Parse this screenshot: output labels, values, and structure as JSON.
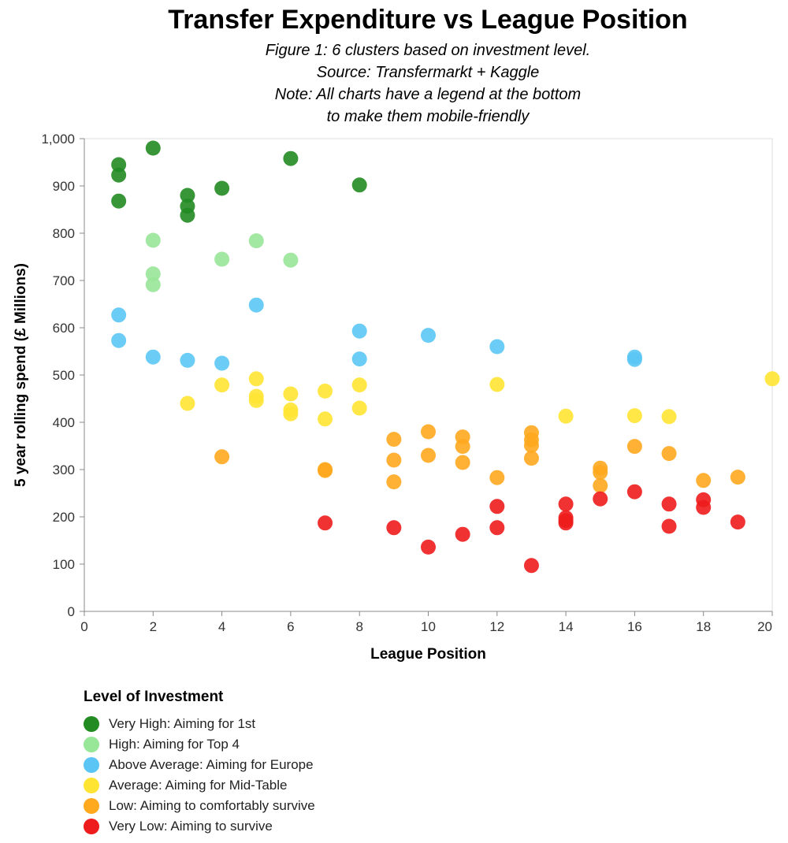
{
  "title": "Transfer Expenditure vs League Position",
  "subtitle_lines": [
    "Figure 1: 6 clusters based on investment level.",
    "Source: Transfermarkt + Kaggle",
    "Note: All charts have a legend at the bottom",
    "to make them mobile-friendly"
  ],
  "chart_data": {
    "type": "scatter",
    "xlabel": "League Position",
    "ylabel": "5 year rolling spend (£ Millions)",
    "xlim": [
      0,
      20
    ],
    "ylim": [
      0,
      1000
    ],
    "x_ticks": [
      0,
      2,
      4,
      6,
      8,
      10,
      12,
      14,
      16,
      18,
      20
    ],
    "y_ticks": [
      0,
      100,
      200,
      300,
      400,
      500,
      600,
      700,
      800,
      900,
      1000
    ],
    "y_tick_labels": [
      "0",
      "100",
      "200",
      "300",
      "400",
      "500",
      "600",
      "700",
      "800",
      "900",
      "1,000"
    ],
    "grid": false,
    "legend_title": "Level of Investment",
    "legend_position": "bottom",
    "series": [
      {
        "name": "Very High: Aiming for 1st",
        "color": "#228b22",
        "points": [
          [
            1,
            945
          ],
          [
            1,
            923
          ],
          [
            1,
            868
          ],
          [
            2,
            980
          ],
          [
            3,
            880
          ],
          [
            3,
            857
          ],
          [
            3,
            838
          ],
          [
            4,
            895
          ],
          [
            6,
            958
          ],
          [
            8,
            902
          ]
        ]
      },
      {
        "name": "High: Aiming for Top 4",
        "color": "#98e698",
        "points": [
          [
            2,
            785
          ],
          [
            2,
            714
          ],
          [
            2,
            691
          ],
          [
            4,
            745
          ],
          [
            5,
            784
          ],
          [
            6,
            743
          ]
        ]
      },
      {
        "name": "Above Average: Aiming for Europe",
        "color": "#5bc6f5",
        "points": [
          [
            1,
            627
          ],
          [
            1,
            573
          ],
          [
            2,
            538
          ],
          [
            3,
            531
          ],
          [
            4,
            525
          ],
          [
            5,
            648
          ],
          [
            8,
            593
          ],
          [
            8,
            534
          ],
          [
            10,
            584
          ],
          [
            12,
            560
          ],
          [
            16,
            538
          ],
          [
            16,
            533
          ]
        ]
      },
      {
        "name": "Average: Aiming for Mid-Table",
        "color": "#ffe433",
        "points": [
          [
            3,
            440
          ],
          [
            4,
            479
          ],
          [
            5,
            492
          ],
          [
            5,
            455
          ],
          [
            5,
            446
          ],
          [
            6,
            460
          ],
          [
            6,
            426
          ],
          [
            6,
            418
          ],
          [
            7,
            466
          ],
          [
            7,
            407
          ],
          [
            8,
            479
          ],
          [
            8,
            430
          ],
          [
            12,
            480
          ],
          [
            14,
            413
          ],
          [
            16,
            414
          ],
          [
            17,
            412
          ],
          [
            20,
            492
          ]
        ]
      },
      {
        "name": "Low: Aiming to comfortably survive",
        "color": "#ffa91f",
        "points": [
          [
            4,
            327
          ],
          [
            7,
            300
          ],
          [
            7,
            298
          ],
          [
            9,
            364
          ],
          [
            9,
            320
          ],
          [
            9,
            274
          ],
          [
            10,
            380
          ],
          [
            10,
            330
          ],
          [
            11,
            369
          ],
          [
            11,
            349
          ],
          [
            11,
            315
          ],
          [
            12,
            283
          ],
          [
            13,
            378
          ],
          [
            13,
            363
          ],
          [
            13,
            351
          ],
          [
            13,
            324
          ],
          [
            15,
            303
          ],
          [
            15,
            294
          ],
          [
            15,
            266
          ],
          [
            16,
            349
          ],
          [
            17,
            334
          ],
          [
            18,
            277
          ],
          [
            19,
            284
          ]
        ]
      },
      {
        "name": "Very Low: Aiming to survive",
        "color": "#ee1c1c",
        "points": [
          [
            7,
            187
          ],
          [
            9,
            177
          ],
          [
            10,
            136
          ],
          [
            11,
            163
          ],
          [
            12,
            222
          ],
          [
            12,
            177
          ],
          [
            13,
            97
          ],
          [
            14,
            227
          ],
          [
            14,
            198
          ],
          [
            14,
            192
          ],
          [
            14,
            187
          ],
          [
            15,
            238
          ],
          [
            16,
            253
          ],
          [
            17,
            227
          ],
          [
            17,
            180
          ],
          [
            18,
            236
          ],
          [
            18,
            220
          ],
          [
            19,
            189
          ]
        ]
      }
    ]
  }
}
